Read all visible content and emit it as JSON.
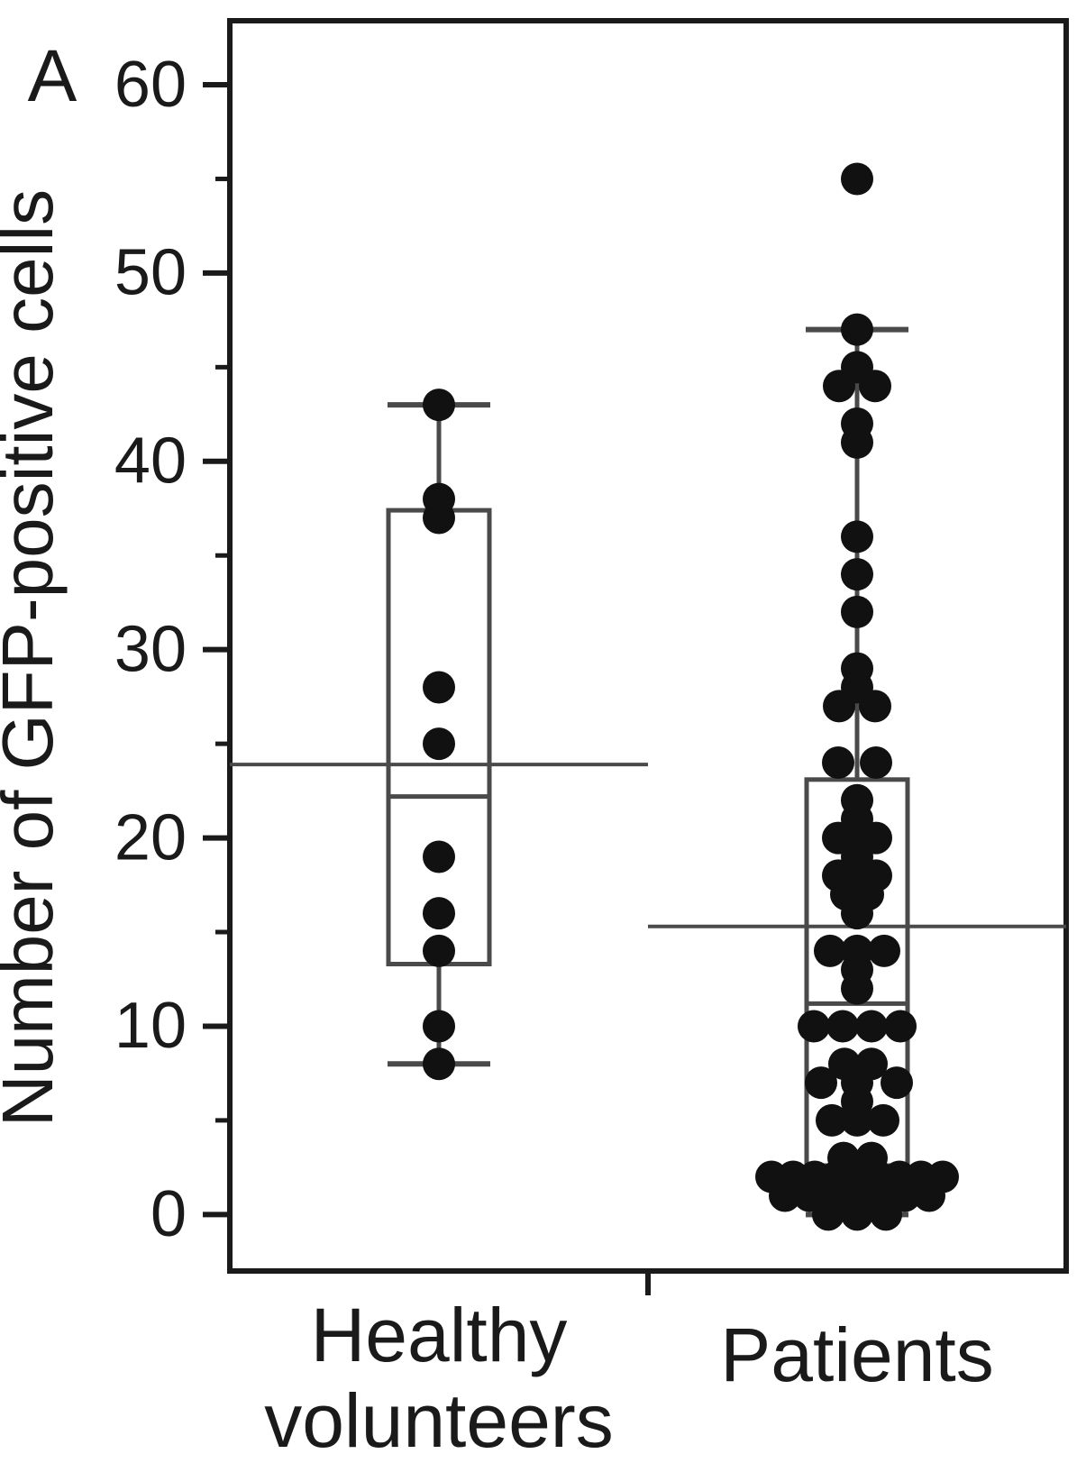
{
  "panel_label": "A",
  "colors": {
    "ink": "#1a1a1a",
    "box_line": "#4a4a4a",
    "dot": "#111111",
    "background": "#ffffff"
  },
  "chart_data": {
    "type": "box-scatter",
    "title": "",
    "xlabel": "",
    "ylabel": "Number of GFP-positive cells",
    "ylim": [
      -3,
      63.4
    ],
    "yticks_major": [
      0,
      10,
      20,
      30,
      40,
      50,
      60
    ],
    "yticks_minor": [
      5,
      15,
      25,
      35,
      45,
      55
    ],
    "grid": false,
    "legend": false,
    "groups": [
      {
        "label": "Healthy volunteers",
        "label_lines": [
          "Healthy",
          "volunteers"
        ],
        "box": {
          "whisker_high": 43,
          "q3": 37.4,
          "median": 22.2,
          "q1": 13.3,
          "whisker_low": 8,
          "mean": 23.9
        },
        "points": [
          {
            "v": 43
          },
          {
            "v": 38
          },
          {
            "v": 37
          },
          {
            "v": 28
          },
          {
            "v": 25
          },
          {
            "v": 19
          },
          {
            "v": 16
          },
          {
            "v": 14
          },
          {
            "v": 10
          },
          {
            "v": 8
          }
        ]
      },
      {
        "label": "Patients",
        "label_lines": [
          "Patients"
        ],
        "box": {
          "whisker_high": 47,
          "q3": 23.1,
          "median": 11.2,
          "q1": 2.6,
          "whisker_low": 0,
          "mean": 15.3
        },
        "points": [
          {
            "v": 55
          },
          {
            "v": 47
          },
          {
            "v": 45
          },
          {
            "v": 44,
            "dx": -20
          },
          {
            "v": 44,
            "dx": 20
          },
          {
            "v": 42
          },
          {
            "v": 41
          },
          {
            "v": 36
          },
          {
            "v": 34
          },
          {
            "v": 32
          },
          {
            "v": 29
          },
          {
            "v": 28
          },
          {
            "v": 27,
            "dx": -20
          },
          {
            "v": 27,
            "dx": 20
          },
          {
            "v": 24,
            "dx": -21
          },
          {
            "v": 24,
            "dx": 21
          },
          {
            "v": 22
          },
          {
            "v": 21
          },
          {
            "v": 20,
            "dx": -21
          },
          {
            "v": 20
          },
          {
            "v": 20,
            "dx": 21
          },
          {
            "v": 19
          },
          {
            "v": 18,
            "dx": -21
          },
          {
            "v": 18
          },
          {
            "v": 18,
            "dx": 21
          },
          {
            "v": 17,
            "dx": -12
          },
          {
            "v": 17,
            "dx": 12
          },
          {
            "v": 16
          },
          {
            "v": 14,
            "dx": -30
          },
          {
            "v": 14
          },
          {
            "v": 14,
            "dx": 30
          },
          {
            "v": 13
          },
          {
            "v": 12
          },
          {
            "v": 10,
            "dx": -48
          },
          {
            "v": 10,
            "dx": -16
          },
          {
            "v": 10,
            "dx": 16
          },
          {
            "v": 10,
            "dx": 48
          },
          {
            "v": 8,
            "dx": -14
          },
          {
            "v": 8,
            "dx": 16
          },
          {
            "v": 7,
            "dx": -40
          },
          {
            "v": 7
          },
          {
            "v": 7,
            "dx": 44
          },
          {
            "v": 6
          },
          {
            "v": 5,
            "dx": -28
          },
          {
            "v": 5
          },
          {
            "v": 5,
            "dx": 29
          },
          {
            "v": 3,
            "dx": -15
          },
          {
            "v": 3,
            "dx": 16
          },
          {
            "v": 2,
            "dx": -95
          },
          {
            "v": 2,
            "dx": -71
          },
          {
            "v": 2,
            "dx": -47
          },
          {
            "v": 2,
            "dx": -23
          },
          {
            "v": 2
          },
          {
            "v": 2,
            "dx": 23
          },
          {
            "v": 2,
            "dx": 47
          },
          {
            "v": 2,
            "dx": 71
          },
          {
            "v": 2,
            "dx": 95
          },
          {
            "v": 1,
            "dx": -80
          },
          {
            "v": 1,
            "dx": -53
          },
          {
            "v": 1,
            "dx": -27
          },
          {
            "v": 1
          },
          {
            "v": 1,
            "dx": 27
          },
          {
            "v": 1,
            "dx": 53
          },
          {
            "v": 1,
            "dx": 80
          },
          {
            "v": 0,
            "dx": -32
          },
          {
            "v": 0
          },
          {
            "v": 0,
            "dx": 32
          }
        ]
      }
    ]
  }
}
